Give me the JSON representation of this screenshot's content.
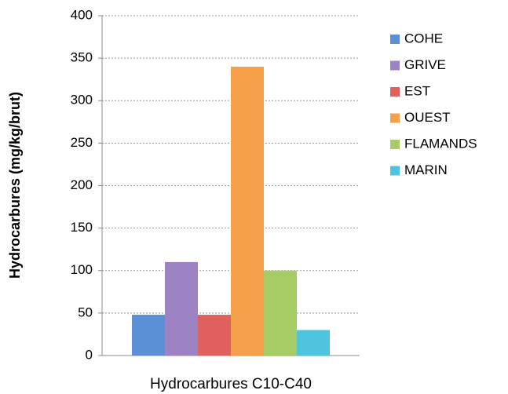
{
  "chart_data": {
    "type": "bar",
    "y_label": "Hydrocarbures (mg/kg/brut)",
    "categories": [
      "Hydrocarbures C10-C40"
    ],
    "series": [
      {
        "name": "COHE",
        "color": "#5b8fd6",
        "values": [
          48
        ]
      },
      {
        "name": "GRIVE",
        "color": "#9b83c4",
        "values": [
          110
        ]
      },
      {
        "name": "EST",
        "color": "#e0605e",
        "values": [
          48
        ]
      },
      {
        "name": "OUEST",
        "color": "#f5a04a",
        "values": [
          340
        ]
      },
      {
        "name": "FLAMANDS",
        "color": "#a6cc66",
        "values": [
          100
        ]
      },
      {
        "name": "MARIN",
        "color": "#4fc4de",
        "values": [
          30
        ]
      }
    ],
    "ylim": [
      0,
      400
    ],
    "yticks": [
      0,
      50,
      100,
      150,
      200,
      250,
      300,
      350,
      400
    ],
    "grid": true
  }
}
